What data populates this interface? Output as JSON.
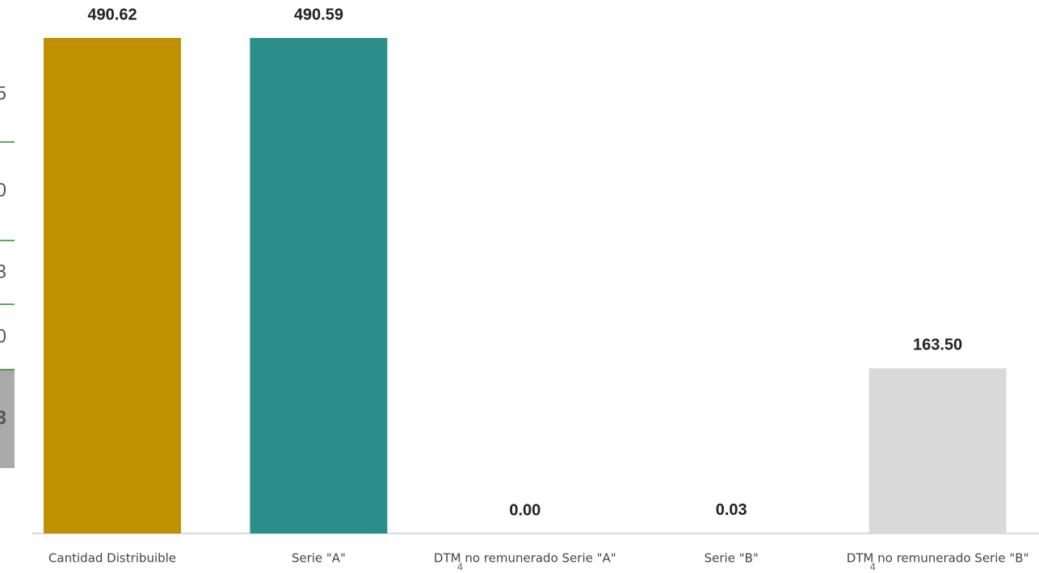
{
  "chart_data": {
    "type": "bar",
    "categories": [
      "Cantidad Distribuible",
      "Serie \"A\"",
      "DTM no remunerado Serie \"A\"",
      "Serie \"B\"",
      "DTM no remunerado Serie \"B\""
    ],
    "values": [
      490.62,
      490.59,
      0.0,
      0.03,
      163.5
    ],
    "value_labels": [
      "490.62",
      "490.59",
      "0.00",
      "0.03",
      "163.50"
    ],
    "colors": [
      "#bf9000",
      "#2a8f8a",
      "#d9d9d9",
      "#1a9a1a",
      "#d9d9d9"
    ],
    "fragments": [
      "5",
      "0",
      "3",
      "0",
      "3"
    ],
    "footnote_marks": [
      "4",
      "4"
    ]
  }
}
